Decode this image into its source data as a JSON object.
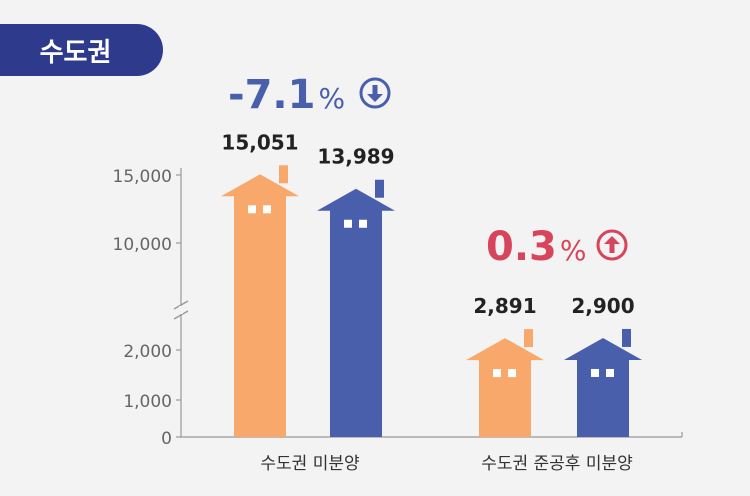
{
  "region": "수도권",
  "colors": {
    "orange": "#f9a86b",
    "blue": "#4a5fab",
    "red": "#d6455b",
    "badge": "#2e3a8c"
  },
  "change_labels": [
    {
      "number": "-7.1",
      "unit": "%",
      "direction": "down"
    },
    {
      "number": "0.3",
      "unit": "%",
      "direction": "up"
    }
  ],
  "chart_data": {
    "type": "bar",
    "categories": [
      "수도권 미분양",
      "수도권 준공후 미분양"
    ],
    "series": [
      {
        "values": [
          15051,
          2891
        ]
      },
      {
        "values": [
          13989,
          2900
        ]
      }
    ],
    "data_labels": [
      [
        "15,051",
        "13,989"
      ],
      [
        "2,891",
        "2,900"
      ]
    ],
    "yticks": [
      0,
      1000,
      2000,
      10000,
      15000
    ],
    "ytick_labels": [
      "0",
      "1,000",
      "2,000",
      "10,000",
      "15,000"
    ],
    "axis_break": true,
    "grid": false,
    "legend": "none"
  }
}
